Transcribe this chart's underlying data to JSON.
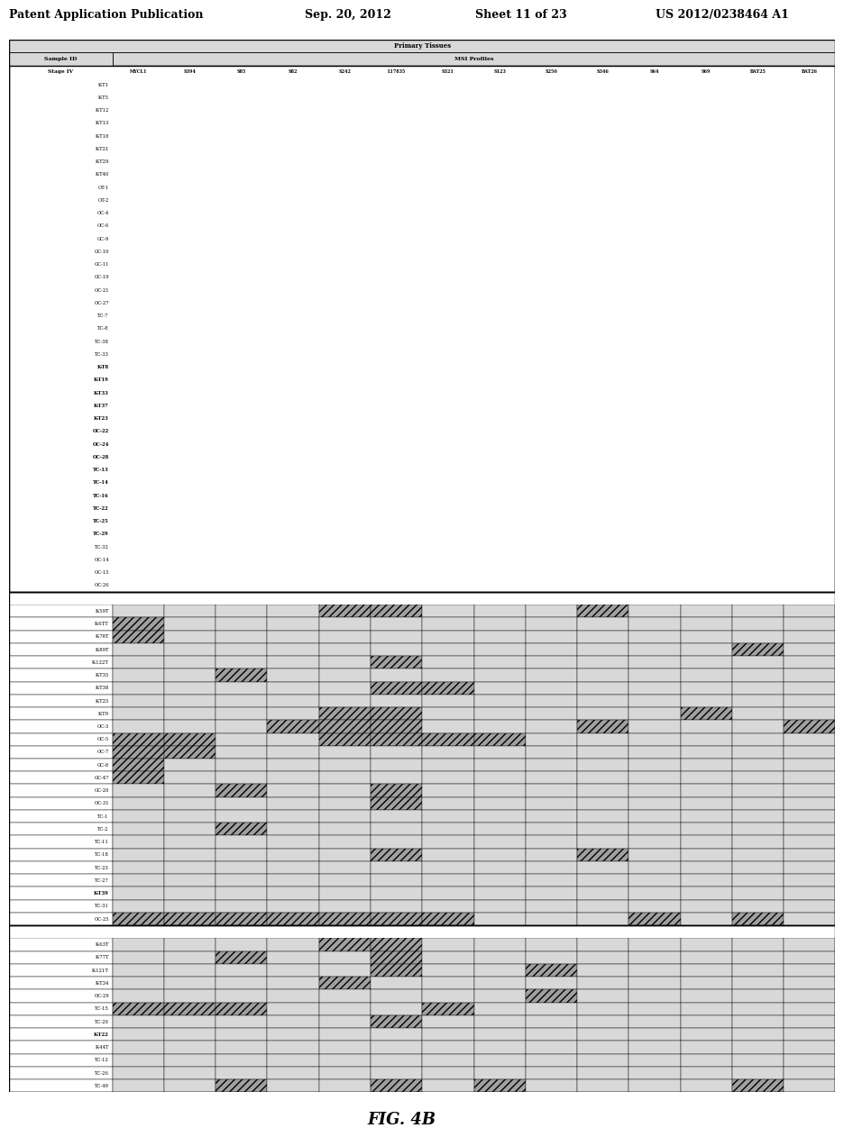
{
  "header_line1": "Patent Application Publication",
  "header_date": "Sep. 20, 2012",
  "header_sheet": "Sheet 11 of 23",
  "header_patent": "US 2012/0238464 A1",
  "figure_label": "FIG. 4B",
  "table_title": "Primary Tissues",
  "col_header1": "Sample ID",
  "col_header2": "MSI Profiles",
  "col_header3": "Stage IV",
  "columns": [
    "MYCL1",
    "S394",
    "S85",
    "S82",
    "S242",
    "L17835",
    "S321",
    "S123",
    "S250",
    "S346",
    "S64",
    "S69",
    "BAT25",
    "BAT26"
  ],
  "rows_section1": [
    {
      "id": "K-T1",
      "bold": false,
      "vals": [
        1,
        0,
        0,
        0,
        0,
        0,
        0,
        0,
        0,
        0,
        1,
        0,
        0,
        0
      ]
    },
    {
      "id": "K-T5",
      "bold": false,
      "vals": [
        0,
        0,
        1,
        1,
        1,
        0,
        1,
        1,
        0,
        0,
        0,
        0,
        0,
        0
      ]
    },
    {
      "id": "K-T12",
      "bold": false,
      "vals": [
        0,
        0,
        0,
        1,
        1,
        0,
        0,
        0,
        0,
        0,
        0,
        0,
        0,
        0
      ]
    },
    {
      "id": "K-T13",
      "bold": false,
      "vals": [
        0,
        1,
        0,
        1,
        1,
        0,
        0,
        0,
        0,
        0,
        0,
        0,
        0,
        0
      ]
    },
    {
      "id": "K-T18",
      "bold": false,
      "vals": [
        0,
        0,
        1,
        0,
        0,
        0,
        0,
        0,
        0,
        0,
        1,
        0,
        0,
        0
      ]
    },
    {
      "id": "K-T21",
      "bold": false,
      "vals": [
        0,
        1,
        0,
        1,
        0,
        0,
        0,
        0,
        0,
        0,
        1,
        0,
        0,
        0
      ]
    },
    {
      "id": "K-T29",
      "bold": false,
      "vals": [
        0,
        0,
        0,
        1,
        0,
        0,
        0,
        0,
        0,
        0,
        0,
        0,
        0,
        0
      ]
    },
    {
      "id": "K-T40",
      "bold": false,
      "vals": [
        0,
        0,
        0,
        1,
        0,
        0,
        0,
        0,
        0,
        0,
        0,
        0,
        0,
        0
      ]
    },
    {
      "id": "OT-1",
      "bold": false,
      "vals": [
        0,
        1,
        0,
        1,
        0,
        0,
        0,
        0,
        0,
        0,
        0,
        0,
        0,
        0
      ]
    },
    {
      "id": "OT-2",
      "bold": false,
      "vals": [
        0,
        1,
        0,
        1,
        1,
        1,
        0,
        0,
        0,
        0,
        0,
        0,
        0,
        0
      ]
    },
    {
      "id": "OC-4",
      "bold": false,
      "vals": [
        0,
        0,
        1,
        1,
        1,
        1,
        0,
        0,
        0,
        1,
        0,
        0,
        0,
        0
      ]
    },
    {
      "id": "OC-6",
      "bold": false,
      "vals": [
        0,
        0,
        0,
        0,
        1,
        1,
        1,
        0,
        0,
        0,
        0,
        0,
        0,
        1
      ]
    },
    {
      "id": "GC-9",
      "bold": false,
      "vals": [
        0,
        1,
        0,
        0,
        0,
        0,
        0,
        0,
        0,
        0,
        0,
        0,
        0,
        0
      ]
    },
    {
      "id": "GC-10",
      "bold": false,
      "vals": [
        0,
        0,
        0,
        1,
        1,
        0,
        0,
        0,
        0,
        0,
        0,
        0,
        0,
        0
      ]
    },
    {
      "id": "GC-11",
      "bold": false,
      "vals": [
        1,
        0,
        1,
        1,
        0,
        0,
        1,
        1,
        0,
        0,
        0,
        0,
        0,
        0
      ]
    },
    {
      "id": "GC-19",
      "bold": false,
      "vals": [
        0,
        1,
        1,
        0,
        0,
        1,
        1,
        0,
        0,
        0,
        0,
        0,
        0,
        0
      ]
    },
    {
      "id": "OC-21",
      "bold": false,
      "vals": [
        0,
        0,
        0,
        0,
        1,
        1,
        0,
        1,
        0,
        0,
        0,
        0,
        0,
        0
      ]
    },
    {
      "id": "OC-27",
      "bold": false,
      "vals": [
        0,
        1,
        0,
        0,
        0,
        0,
        0,
        0,
        0,
        0,
        0,
        0,
        0,
        0
      ]
    },
    {
      "id": "TC-7",
      "bold": false,
      "vals": [
        0,
        0,
        0,
        0,
        0,
        1,
        1,
        0,
        0,
        0,
        0,
        0,
        0,
        0
      ]
    },
    {
      "id": "TC-8",
      "bold": false,
      "vals": [
        0,
        0,
        0,
        0,
        0,
        1,
        0,
        0,
        0,
        0,
        0,
        0,
        0,
        0
      ]
    },
    {
      "id": "TC-38",
      "bold": false,
      "vals": [
        0,
        0,
        0,
        0,
        0,
        1,
        0,
        0,
        0,
        0,
        0,
        0,
        0,
        0
      ]
    },
    {
      "id": "TC-33",
      "bold": false,
      "vals": [
        0,
        0,
        0,
        0,
        0,
        0,
        0,
        0,
        1,
        0,
        0,
        0,
        0,
        0
      ]
    },
    {
      "id": "K-T8",
      "bold": true,
      "vals": [
        0,
        0,
        0,
        0,
        0,
        0,
        0,
        0,
        0,
        0,
        0,
        0,
        0,
        0
      ]
    },
    {
      "id": "K-T19",
      "bold": true,
      "vals": [
        0,
        0,
        0,
        0,
        0,
        0,
        0,
        0,
        0,
        0,
        0,
        0,
        0,
        0
      ]
    },
    {
      "id": "K-T33",
      "bold": true,
      "vals": [
        0,
        0,
        0,
        0,
        0,
        0,
        0,
        0,
        0,
        0,
        0,
        0,
        0,
        0
      ]
    },
    {
      "id": "K-T37",
      "bold": true,
      "vals": [
        0,
        0,
        0,
        0,
        0,
        0,
        0,
        0,
        0,
        0,
        0,
        0,
        0,
        0
      ]
    },
    {
      "id": "K-T23",
      "bold": true,
      "vals": [
        0,
        0,
        0,
        0,
        0,
        0,
        0,
        0,
        0,
        0,
        0,
        0,
        0,
        0
      ]
    },
    {
      "id": "OC-22",
      "bold": true,
      "vals": [
        0,
        0,
        0,
        0,
        0,
        0,
        0,
        0,
        0,
        0,
        0,
        0,
        0,
        0
      ]
    },
    {
      "id": "OC-24",
      "bold": true,
      "vals": [
        0,
        0,
        0,
        0,
        0,
        0,
        0,
        0,
        0,
        0,
        0,
        0,
        0,
        0
      ]
    },
    {
      "id": "OC-28",
      "bold": true,
      "vals": [
        0,
        0,
        0,
        0,
        0,
        0,
        0,
        0,
        0,
        0,
        0,
        0,
        0,
        0
      ]
    },
    {
      "id": "TC-13",
      "bold": true,
      "vals": [
        0,
        0,
        0,
        0,
        0,
        0,
        0,
        0,
        0,
        0,
        0,
        0,
        0,
        0
      ]
    },
    {
      "id": "TC-14",
      "bold": true,
      "vals": [
        0,
        0,
        0,
        0,
        0,
        0,
        0,
        0,
        0,
        0,
        0,
        0,
        0,
        0
      ]
    },
    {
      "id": "TC-16",
      "bold": true,
      "vals": [
        0,
        0,
        0,
        0,
        0,
        0,
        0,
        0,
        0,
        0,
        0,
        0,
        0,
        0
      ]
    },
    {
      "id": "TC-22",
      "bold": true,
      "vals": [
        0,
        0,
        0,
        0,
        0,
        0,
        0,
        0,
        0,
        0,
        0,
        0,
        0,
        0
      ]
    },
    {
      "id": "TC-25",
      "bold": true,
      "vals": [
        0,
        0,
        0,
        0,
        0,
        0,
        0,
        0,
        0,
        0,
        0,
        0,
        0,
        0
      ]
    },
    {
      "id": "TC-29",
      "bold": true,
      "vals": [
        0,
        0,
        0,
        0,
        0,
        0,
        0,
        0,
        0,
        0,
        0,
        0,
        0,
        0
      ]
    },
    {
      "id": "TC-32",
      "bold": false,
      "vals": [
        1,
        1,
        0,
        0,
        1,
        1,
        0,
        0,
        0,
        0,
        1,
        0,
        0,
        0
      ]
    },
    {
      "id": "OC-14",
      "bold": false,
      "vals": [
        1,
        1,
        0,
        0,
        1,
        0,
        0,
        0,
        0,
        0,
        0,
        0,
        0,
        0
      ]
    },
    {
      "id": "OC-15",
      "bold": false,
      "vals": [
        1,
        1,
        0,
        1,
        1,
        0,
        0,
        0,
        0,
        0,
        1,
        0,
        0,
        0
      ]
    },
    {
      "id": "OC-26",
      "bold": false,
      "vals": [
        1,
        0,
        0,
        0,
        0,
        0,
        0,
        0,
        0,
        0,
        0,
        0,
        0,
        0
      ]
    }
  ],
  "rows_section2": [
    {
      "id": "K-59T",
      "bold": false,
      "vals": [
        0,
        0,
        0,
        0,
        1,
        1,
        0,
        0,
        0,
        1,
        0,
        0,
        0,
        0
      ]
    },
    {
      "id": "K-6TT",
      "bold": false,
      "vals": [
        1,
        0,
        0,
        0,
        0,
        0,
        0,
        0,
        0,
        0,
        0,
        0,
        0,
        0
      ]
    },
    {
      "id": "K-78T",
      "bold": false,
      "vals": [
        1,
        0,
        0,
        0,
        0,
        0,
        0,
        0,
        0,
        0,
        0,
        0,
        0,
        0
      ]
    },
    {
      "id": "K-89T",
      "bold": false,
      "vals": [
        0,
        0,
        0,
        0,
        0,
        0,
        0,
        0,
        0,
        0,
        0,
        0,
        1,
        0
      ]
    },
    {
      "id": "K-122T",
      "bold": false,
      "vals": [
        0,
        0,
        0,
        0,
        0,
        1,
        0,
        0,
        0,
        0,
        0,
        0,
        0,
        0
      ]
    },
    {
      "id": "K-T35",
      "bold": false,
      "vals": [
        0,
        0,
        1,
        0,
        0,
        0,
        0,
        0,
        0,
        0,
        0,
        0,
        0,
        0
      ]
    },
    {
      "id": "K-T38",
      "bold": false,
      "vals": [
        0,
        0,
        0,
        0,
        0,
        1,
        1,
        0,
        0,
        0,
        0,
        0,
        0,
        0
      ]
    },
    {
      "id": "K-T25",
      "bold": false,
      "vals": [
        0,
        0,
        0,
        0,
        0,
        0,
        0,
        0,
        0,
        0,
        0,
        0,
        0,
        0
      ]
    },
    {
      "id": "K-T9",
      "bold": false,
      "vals": [
        0,
        0,
        0,
        0,
        1,
        1,
        0,
        0,
        0,
        0,
        0,
        1,
        0,
        0
      ]
    },
    {
      "id": "OC-3",
      "bold": false,
      "vals": [
        0,
        0,
        0,
        1,
        1,
        1,
        0,
        0,
        0,
        1,
        0,
        0,
        0,
        1
      ]
    },
    {
      "id": "OC-5",
      "bold": false,
      "vals": [
        1,
        1,
        0,
        0,
        1,
        1,
        1,
        1,
        0,
        0,
        0,
        0,
        0,
        0
      ]
    },
    {
      "id": "OC-7",
      "bold": false,
      "vals": [
        1,
        1,
        0,
        0,
        0,
        0,
        0,
        0,
        0,
        0,
        0,
        0,
        0,
        0
      ]
    },
    {
      "id": "GC-8",
      "bold": false,
      "vals": [
        1,
        0,
        0,
        0,
        0,
        0,
        0,
        0,
        0,
        0,
        0,
        0,
        0,
        0
      ]
    },
    {
      "id": "GC-47",
      "bold": false,
      "vals": [
        1,
        0,
        0,
        0,
        0,
        0,
        0,
        0,
        0,
        0,
        0,
        0,
        0,
        0
      ]
    },
    {
      "id": "GC-20",
      "bold": false,
      "vals": [
        0,
        0,
        1,
        0,
        0,
        1,
        0,
        0,
        0,
        0,
        0,
        0,
        0,
        0
      ]
    },
    {
      "id": "OC-31",
      "bold": false,
      "vals": [
        0,
        0,
        0,
        0,
        0,
        1,
        0,
        0,
        0,
        0,
        0,
        0,
        0,
        0
      ]
    },
    {
      "id": "TC-1",
      "bold": false,
      "vals": [
        0,
        0,
        0,
        0,
        0,
        0,
        0,
        0,
        0,
        0,
        0,
        0,
        0,
        0
      ]
    },
    {
      "id": "TC-2",
      "bold": false,
      "vals": [
        0,
        0,
        1,
        0,
        0,
        0,
        0,
        0,
        0,
        0,
        0,
        0,
        0,
        0
      ]
    },
    {
      "id": "TC-11",
      "bold": false,
      "vals": [
        0,
        0,
        0,
        0,
        0,
        0,
        0,
        0,
        0,
        0,
        0,
        0,
        0,
        0
      ]
    },
    {
      "id": "TC-18",
      "bold": false,
      "vals": [
        0,
        0,
        0,
        0,
        0,
        1,
        0,
        0,
        0,
        1,
        0,
        0,
        0,
        0
      ]
    },
    {
      "id": "TC-23",
      "bold": false,
      "vals": [
        0,
        0,
        0,
        0,
        0,
        0,
        0,
        0,
        0,
        0,
        0,
        0,
        0,
        0
      ]
    },
    {
      "id": "TC-27",
      "bold": false,
      "vals": [
        0,
        0,
        0,
        0,
        0,
        0,
        0,
        0,
        0,
        0,
        0,
        0,
        0,
        0
      ]
    },
    {
      "id": "K-T39",
      "bold": true,
      "vals": [
        0,
        0,
        0,
        0,
        0,
        0,
        0,
        0,
        0,
        0,
        0,
        0,
        0,
        0
      ]
    },
    {
      "id": "TC-31",
      "bold": false,
      "vals": [
        0,
        0,
        0,
        0,
        0,
        0,
        0,
        0,
        0,
        0,
        0,
        0,
        0,
        0
      ]
    },
    {
      "id": "OC-25",
      "bold": false,
      "vals": [
        1,
        1,
        1,
        1,
        1,
        1,
        1,
        0,
        0,
        0,
        1,
        0,
        1,
        0
      ]
    }
  ],
  "rows_section3": [
    {
      "id": "K-63T",
      "bold": false,
      "vals": [
        0,
        0,
        0,
        0,
        1,
        1,
        0,
        0,
        0,
        0,
        0,
        0,
        0,
        0
      ]
    },
    {
      "id": "K-77T",
      "bold": false,
      "vals": [
        0,
        0,
        1,
        0,
        0,
        1,
        0,
        0,
        0,
        0,
        0,
        0,
        0,
        0
      ]
    },
    {
      "id": "K-121T",
      "bold": false,
      "vals": [
        0,
        0,
        0,
        0,
        0,
        1,
        0,
        0,
        1,
        0,
        0,
        0,
        0,
        0
      ]
    },
    {
      "id": "K-T34",
      "bold": false,
      "vals": [
        0,
        0,
        0,
        0,
        1,
        0,
        0,
        0,
        0,
        0,
        0,
        0,
        0,
        0
      ]
    },
    {
      "id": "OC-29",
      "bold": false,
      "vals": [
        0,
        0,
        0,
        0,
        0,
        0,
        0,
        0,
        1,
        0,
        0,
        0,
        0,
        0
      ]
    },
    {
      "id": "TC-15",
      "bold": false,
      "vals": [
        1,
        1,
        1,
        0,
        0,
        0,
        1,
        0,
        0,
        0,
        0,
        0,
        0,
        0
      ]
    },
    {
      "id": "TC-20",
      "bold": false,
      "vals": [
        0,
        0,
        0,
        0,
        0,
        1,
        0,
        0,
        0,
        0,
        0,
        0,
        0,
        0
      ]
    },
    {
      "id": "K-T22",
      "bold": true,
      "vals": [
        0,
        0,
        0,
        0,
        0,
        0,
        0,
        0,
        0,
        0,
        0,
        0,
        0,
        0
      ]
    },
    {
      "id": "K-44T",
      "bold": false,
      "vals": [
        0,
        0,
        0,
        0,
        0,
        0,
        0,
        0,
        0,
        0,
        0,
        0,
        0,
        0
      ]
    },
    {
      "id": "TC-12",
      "bold": false,
      "vals": [
        0,
        0,
        0,
        0,
        0,
        0,
        0,
        0,
        0,
        0,
        0,
        0,
        0,
        0
      ]
    },
    {
      "id": "TC-26",
      "bold": false,
      "vals": [
        0,
        0,
        0,
        0,
        0,
        0,
        0,
        0,
        0,
        0,
        0,
        0,
        0,
        0
      ]
    },
    {
      "id": "TC-49",
      "bold": false,
      "vals": [
        0,
        0,
        1,
        0,
        0,
        1,
        0,
        1,
        0,
        0,
        0,
        0,
        1,
        0
      ]
    }
  ]
}
